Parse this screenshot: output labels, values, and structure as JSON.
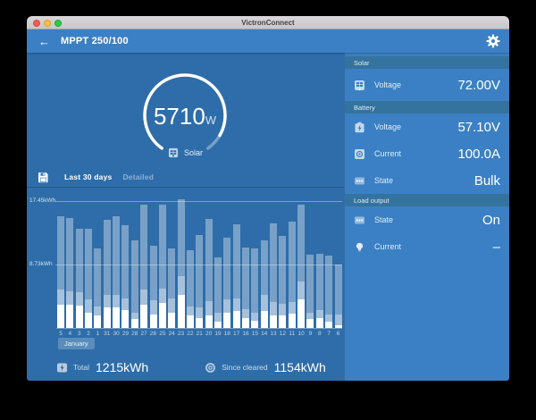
{
  "window": {
    "titlebar_title": "VictronConnect"
  },
  "header": {
    "back_icon": "←",
    "title": "MPPT 250/100",
    "gear_icon": "settings"
  },
  "gauge": {
    "value": "5710",
    "unit": "W",
    "label": "Solar",
    "icon": "solar-panel-icon",
    "progress": 0.9
  },
  "tabs": {
    "save_icon": "save-icon",
    "active": "Last 30 days",
    "inactive": "Detailed"
  },
  "chart_data": {
    "type": "bar",
    "stacked": true,
    "title": "Solar yield last 30 days",
    "ylabel": "kWh",
    "ylim": [
      0,
      18.3
    ],
    "grid": true,
    "gridlines": [
      {
        "label": "17.45kWh",
        "value": 17.45
      },
      {
        "label": "8.73kWh",
        "value": 8.73
      }
    ],
    "month_badge": "January",
    "categories": [
      "5",
      "4",
      "3",
      "2",
      "1",
      "31",
      "30",
      "29",
      "28",
      "27",
      "26",
      "25",
      "24",
      "23",
      "22",
      "21",
      "20",
      "19",
      "18",
      "17",
      "16",
      "15",
      "14",
      "13",
      "12",
      "11",
      "10",
      "9",
      "8",
      "7",
      "6"
    ],
    "series": [
      {
        "name": "yield-bottom",
        "color": "#ffffff",
        "values": [
          3.2,
          3.2,
          3.1,
          2.1,
          1.7,
          2.8,
          2.8,
          2.4,
          1.2,
          3.2,
          1.9,
          3.5,
          2.1,
          4.5,
          1.7,
          1.4,
          1.7,
          0.9,
          2.1,
          2.3,
          1.3,
          1.0,
          2.3,
          1.7,
          1.7,
          2.0,
          3.9,
          1.2,
          1.4,
          0.9,
          0.4
        ]
      },
      {
        "name": "yield-middle",
        "color": "rgba(255,255,255,0.58)",
        "values": [
          2.1,
          1.8,
          1.8,
          1.8,
          1.3,
          1.7,
          1.7,
          1.6,
          0.9,
          2.1,
          1.9,
          1.9,
          2.0,
          2.6,
          1.3,
          1.4,
          2.0,
          1.2,
          1.8,
          1.8,
          1.3,
          1.1,
          2.2,
          1.9,
          1.6,
          1.6,
          2.5,
          0.9,
          1.0,
          1.0,
          1.5
        ]
      },
      {
        "name": "yield-top",
        "color": "rgba(255,255,255,0.36)",
        "values": [
          10.1,
          10.1,
          8.8,
          9.8,
          7.9,
          10.4,
          10.9,
          10.1,
          9.9,
          11.6,
          7.5,
          11.6,
          6.8,
          10.6,
          7.7,
          10.0,
          11.3,
          7.6,
          8.5,
          10.1,
          8.5,
          8.8,
          7.5,
          10.8,
          9.3,
          11.0,
          10.5,
          8.0,
          7.8,
          8.0,
          6.8
        ]
      }
    ]
  },
  "totals": {
    "total_icon": "solar-total-icon",
    "total_label": "Total",
    "total_value": "1215kWh",
    "since_icon": "since-cleared-icon",
    "since_label": "Since cleared",
    "since_value": "1154kWh"
  },
  "sidebar": {
    "sections": [
      {
        "title": "Solar",
        "rows": [
          {
            "icon": "solar-panel-icon",
            "label": "Voltage",
            "value": "72.00V"
          }
        ]
      },
      {
        "title": "Battery",
        "rows": [
          {
            "icon": "battery-icon",
            "label": "Voltage",
            "value": "57.10V"
          },
          {
            "icon": "current-gauge-icon",
            "label": "Current",
            "value": "100.0A"
          },
          {
            "icon": "dots-icon",
            "label": "State",
            "value": "Bulk"
          }
        ]
      },
      {
        "title": "Load output",
        "rows": [
          {
            "icon": "dots-icon",
            "label": "State",
            "value": "On"
          },
          {
            "icon": "bulb-icon",
            "label": "Current",
            "value": "–"
          }
        ]
      }
    ]
  },
  "colors": {
    "header_bg": "#3b80c4",
    "main_bg": "#2e6da9",
    "sidebar_bg": "#3b80c4",
    "section_header_bg": "#34739e",
    "accent_white": "#ffffff"
  }
}
